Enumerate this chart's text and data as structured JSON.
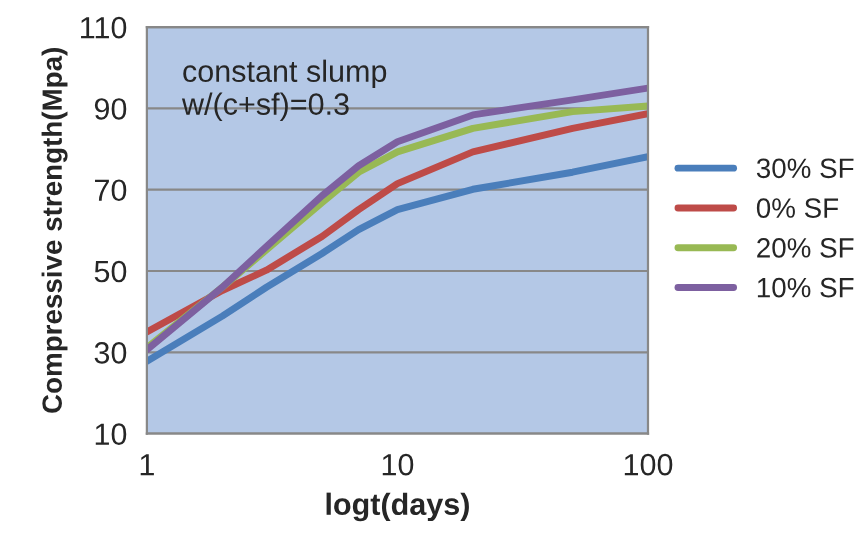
{
  "chart_data": {
    "type": "line",
    "xlabel": "logt(days)",
    "ylabel": "Compressive strength(Mpa)",
    "log": "x",
    "xlim": [
      1,
      100
    ],
    "xticks": [
      1,
      10,
      100
    ],
    "ylim": [
      10,
      110
    ],
    "yticks": [
      10,
      30,
      50,
      70,
      90,
      110
    ],
    "grid": "y",
    "legend": "right",
    "marker": "none",
    "line_style": "solid",
    "annotations": [
      "constant slump",
      "w/(c+sf)=0.3"
    ],
    "x": [
      1,
      2,
      3,
      5,
      7,
      10,
      20,
      50,
      100
    ],
    "series": [
      {
        "name": "30% SF",
        "color": "#4a7ebb",
        "values": [
          27.8,
          38.9,
          46,
          54.3,
          60.2,
          65.1,
          70.1,
          74.3,
          78.1
        ]
      },
      {
        "name": "0% SF",
        "color": "#be4b48",
        "values": [
          35,
          45.2,
          50.2,
          58.5,
          65.1,
          71.5,
          79.3,
          85.1,
          88.7
        ]
      },
      {
        "name": "20% SF",
        "color": "#98b954",
        "values": [
          31.1,
          46,
          55.2,
          66.8,
          74.3,
          79.3,
          85.1,
          89.2,
          90.6
        ]
      },
      {
        "name": "10% SF",
        "color": "#7d60a0",
        "values": [
          30.6,
          46,
          56,
          68.5,
          75.9,
          81.8,
          88.4,
          92.1,
          95
        ]
      }
    ]
  }
}
